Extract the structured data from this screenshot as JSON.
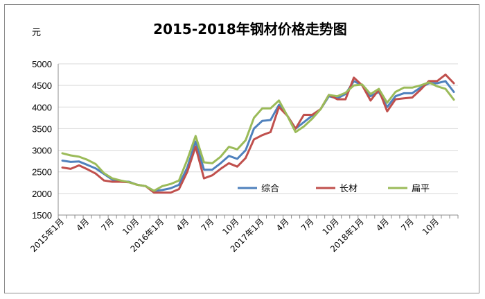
{
  "chart_data": {
    "type": "line",
    "title": "2015-2018年钢材价格走势图",
    "ylabel": "元",
    "xlabel": "",
    "ylim": [
      1500,
      5000
    ],
    "yticks": [
      5000,
      4500,
      4000,
      3500,
      3000,
      2500,
      2000,
      1500
    ],
    "y_grid": true,
    "legend_position": "lower-right-inside",
    "x_tick_labels": [
      {
        "index": 0,
        "label": "2015年1月"
      },
      {
        "index": 3,
        "label": "4月"
      },
      {
        "index": 6,
        "label": "7月"
      },
      {
        "index": 9,
        "label": "10月"
      },
      {
        "index": 12,
        "label": "2016年1月"
      },
      {
        "index": 15,
        "label": "4月"
      },
      {
        "index": 18,
        "label": "7月"
      },
      {
        "index": 21,
        "label": "10月"
      },
      {
        "index": 24,
        "label": "2017年1月"
      },
      {
        "index": 27,
        "label": "4月"
      },
      {
        "index": 30,
        "label": "7月"
      },
      {
        "index": 33,
        "label": "10月"
      },
      {
        "index": 36,
        "label": "2018年1月"
      },
      {
        "index": 39,
        "label": "4月"
      },
      {
        "index": 42,
        "label": "7月"
      },
      {
        "index": 45,
        "label": "10月"
      }
    ],
    "series": [
      {
        "name": "综合",
        "color": "#4f81bd",
        "values": [
          2760,
          2730,
          2740,
          2660,
          2580,
          2450,
          2320,
          2280,
          2270,
          2200,
          2170,
          2060,
          2080,
          2120,
          2200,
          2600,
          3200,
          2550,
          2550,
          2700,
          2870,
          2800,
          3000,
          3500,
          3680,
          3700,
          4050,
          3800,
          3500,
          3650,
          3800,
          3950,
          4250,
          4200,
          4300,
          4600,
          4500,
          4250,
          4350,
          4000,
          4250,
          4320,
          4320,
          4450,
          4550,
          4550,
          4600,
          4350
        ]
      },
      {
        "name": "长材",
        "color": "#c0504d",
        "values": [
          2600,
          2570,
          2650,
          2560,
          2460,
          2300,
          2270,
          2270,
          2260,
          2200,
          2170,
          2020,
          2020,
          2020,
          2100,
          2500,
          3080,
          2350,
          2420,
          2570,
          2700,
          2620,
          2820,
          3250,
          3350,
          3420,
          4000,
          3800,
          3500,
          3820,
          3820,
          3950,
          4280,
          4180,
          4180,
          4680,
          4500,
          4150,
          4400,
          3900,
          4180,
          4200,
          4220,
          4400,
          4600,
          4600,
          4750,
          4550
        ]
      },
      {
        "name": "扁平",
        "color": "#9bbb59",
        "values": [
          2930,
          2880,
          2850,
          2780,
          2680,
          2470,
          2350,
          2300,
          2260,
          2200,
          2170,
          2060,
          2170,
          2220,
          2300,
          2780,
          3330,
          2720,
          2700,
          2850,
          3080,
          3020,
          3230,
          3750,
          3970,
          3970,
          4150,
          3800,
          3420,
          3550,
          3730,
          3950,
          4280,
          4250,
          4330,
          4500,
          4520,
          4300,
          4420,
          4100,
          4350,
          4450,
          4450,
          4500,
          4570,
          4480,
          4420,
          4170
        ]
      }
    ]
  }
}
